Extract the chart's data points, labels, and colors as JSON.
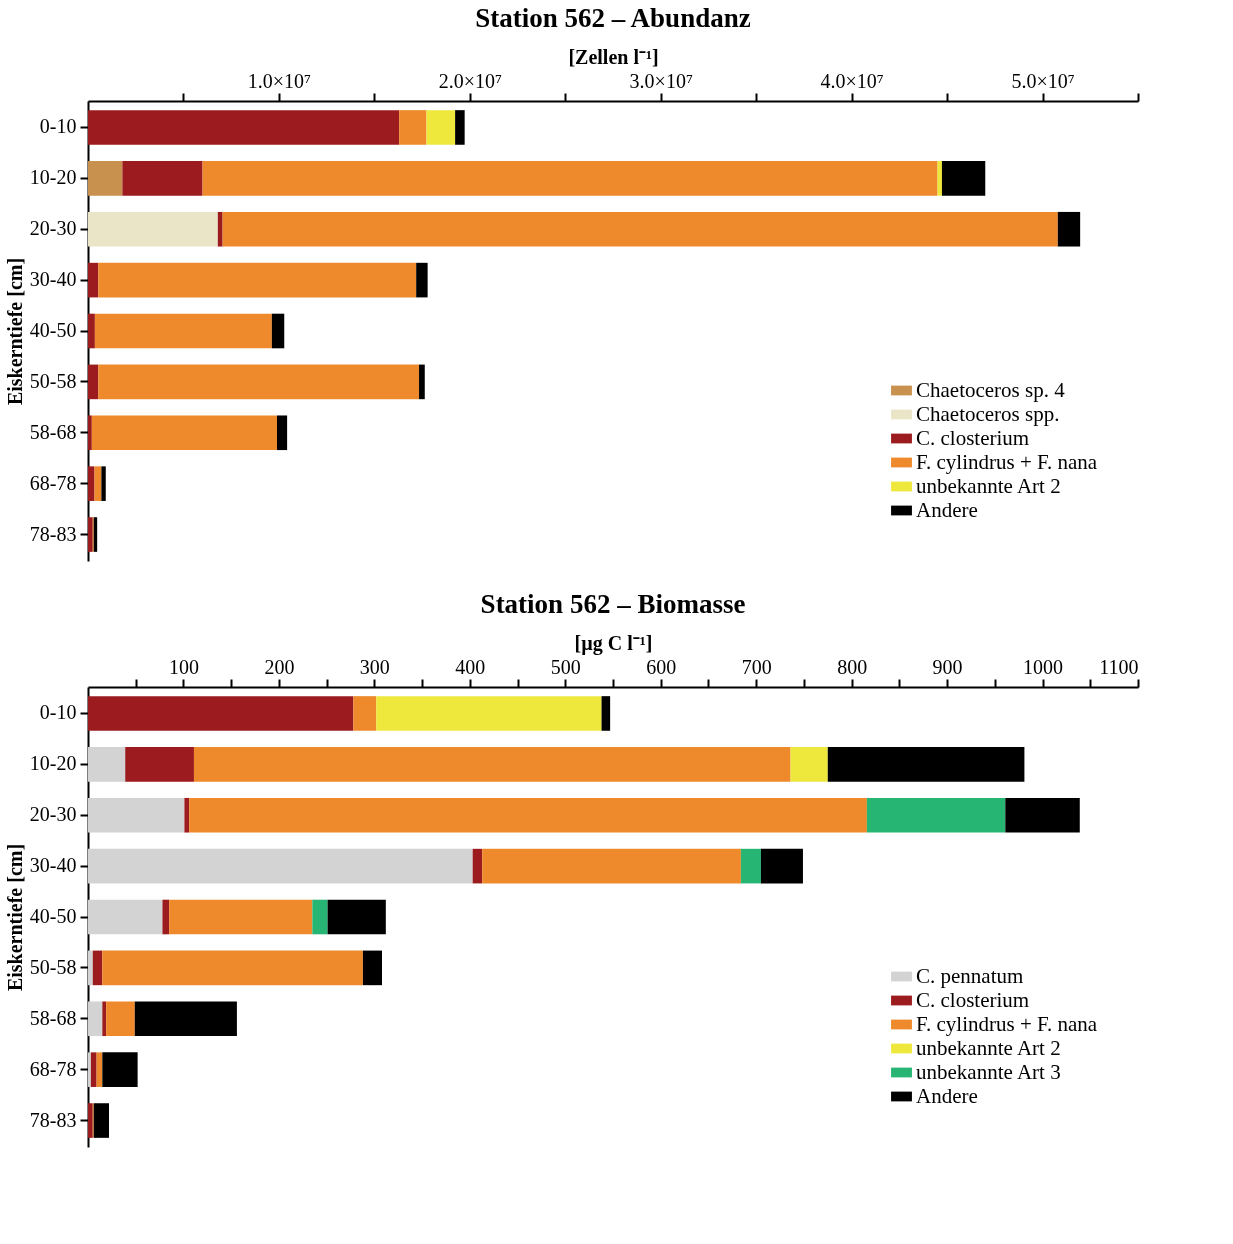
{
  "chart_data": [
    {
      "type": "bar",
      "title": "Station 562 – Abundanz",
      "xlabel": "[Zellen l⁻¹]",
      "ylabel": "Eiskerntiefe [cm]",
      "orientation": "horizontal",
      "stacked": true,
      "legend": "bottom right",
      "grid": false,
      "categories": [
        "0-10",
        "10-20",
        "20-30",
        "30-40",
        "40-50",
        "50-58",
        "58-68",
        "68-78",
        "78-83"
      ],
      "xlim": [
        0,
        55000000
      ],
      "xticks": [
        {
          "value": 5000000,
          "label": null
        },
        {
          "value": 10000000,
          "label": "1.0×10⁷"
        },
        {
          "value": 15000000,
          "label": null
        },
        {
          "value": 20000000,
          "label": "2.0×10⁷"
        },
        {
          "value": 25000000,
          "label": null
        },
        {
          "value": 30000000,
          "label": "3.0×10⁷"
        },
        {
          "value": 35000000,
          "label": null
        },
        {
          "value": 40000000,
          "label": "4.0×10⁷"
        },
        {
          "value": 45000000,
          "label": null
        },
        {
          "value": 50000000,
          "label": "5.0×10⁷"
        },
        {
          "value": 55000000,
          "label": null
        }
      ],
      "series": [
        {
          "name": "Chaetoceros sp. 4",
          "color": "#c8924e",
          "values": [
            null,
            1800000,
            null,
            null,
            null,
            null,
            null,
            null,
            null
          ]
        },
        {
          "name": "Chaetoceros spp.",
          "color": "#ebe5c8",
          "values": [
            null,
            null,
            6800000,
            null,
            null,
            null,
            null,
            null,
            null
          ]
        },
        {
          "name": "C. closterium",
          "color": "#9b1b1e",
          "values": [
            16300000,
            4200000,
            250000,
            540000,
            360000,
            540000,
            200000,
            340000,
            250000
          ]
        },
        {
          "name": "F. cylindrus + F. nana",
          "color": "#ee8a2c",
          "values": [
            1430000,
            38500000,
            43750000,
            16650000,
            9270000,
            16800000,
            9700000,
            360000,
            50000
          ]
        },
        {
          "name": "unbekannte Art 2",
          "color": "#eee83c",
          "values": [
            1500000,
            230000,
            null,
            null,
            null,
            null,
            null,
            null,
            null
          ]
        },
        {
          "name": "Andere",
          "color": "#000000",
          "values": [
            500000,
            2270000,
            1170000,
            600000,
            650000,
            300000,
            530000,
            230000,
            180000
          ]
        }
      ]
    },
    {
      "type": "bar",
      "title": "Station 562 – Biomasse",
      "xlabel": "[µg C l⁻¹]",
      "ylabel": "Eiskerntiefe [cm]",
      "orientation": "horizontal",
      "stacked": true,
      "legend": "bottom right",
      "grid": false,
      "categories": [
        "0-10",
        "10-20",
        "20-30",
        "30-40",
        "40-50",
        "50-58",
        "58-68",
        "68-78",
        "78-83"
      ],
      "xlim": [
        0,
        1100
      ],
      "xticks": [
        {
          "value": 50,
          "label": null
        },
        100,
        {
          "value": 150,
          "label": null
        },
        200,
        {
          "value": 250,
          "label": null
        },
        300,
        {
          "value": 350,
          "label": null
        },
        400,
        {
          "value": 450,
          "label": null
        },
        500,
        {
          "value": 550,
          "label": null
        },
        600,
        {
          "value": 650,
          "label": null
        },
        700,
        {
          "value": 750,
          "label": null
        },
        800,
        {
          "value": 850,
          "label": null
        },
        900,
        {
          "value": 950,
          "label": null
        },
        1000,
        {
          "value": 1050,
          "label": null
        },
        1100
      ],
      "series": [
        {
          "name": "C. pennatum",
          "color": "#d3d3d3",
          "values": [
            null,
            39,
            101,
            403,
            78,
            5,
            15,
            3,
            null
          ]
        },
        {
          "name": "C. closterium",
          "color": "#9b1b1e",
          "values": [
            278,
            72,
            5,
            10,
            7,
            10,
            4,
            6,
            5
          ]
        },
        {
          "name": "F. cylindrus + F. nana",
          "color": "#ee8a2c",
          "values": [
            24,
            625,
            710,
            271,
            150,
            273,
            30,
            6,
            1
          ]
        },
        {
          "name": "unbekannte Art 2",
          "color": "#eee83c",
          "values": [
            236,
            39,
            null,
            null,
            null,
            null,
            null,
            null,
            null
          ]
        },
        {
          "name": "unbekannte Art 3",
          "color": "#27b573",
          "values": [
            null,
            null,
            145,
            21,
            16,
            null,
            null,
            null,
            null
          ]
        },
        {
          "name": "Andere",
          "color": "#000000",
          "values": [
            9,
            206,
            78,
            44,
            61,
            20,
            107,
            37,
            16
          ]
        }
      ]
    }
  ]
}
